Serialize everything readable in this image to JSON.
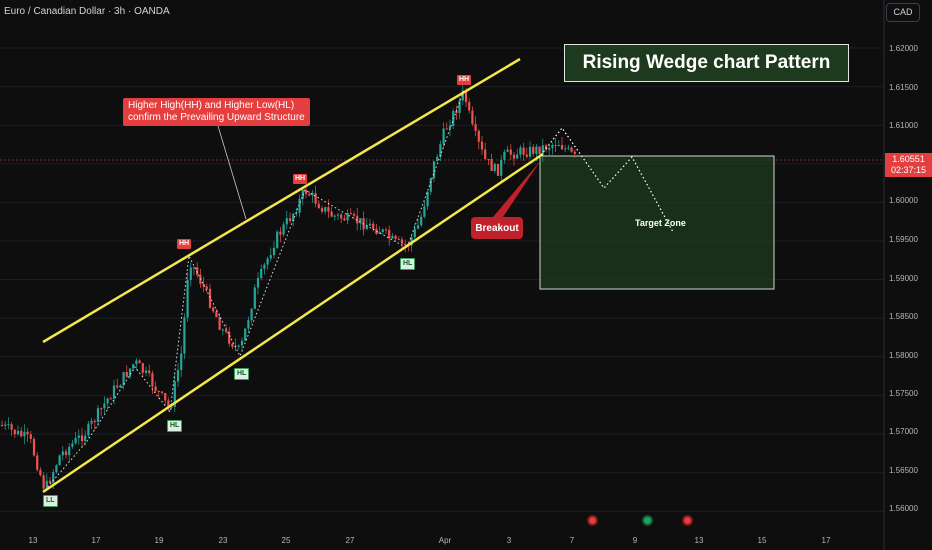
{
  "header": {
    "symbol": "Euro / Canadian Dollar · 3h · OANDA",
    "currency_button": "CAD"
  },
  "title_box": {
    "text": "Rising Wedge chart Pattern"
  },
  "callout": {
    "line1": "Higher High(HH) and Higher Low(HL)",
    "line2": "confirm the Prevailing Upward Structure"
  },
  "breakout_label": "Breakout",
  "target_label": "Target Zone",
  "current_price": {
    "price": "1.60551",
    "countdown": "02:37:15"
  },
  "price_axis": [
    "1.62000",
    "1.61500",
    "1.61000",
    "1.60500",
    "1.60000",
    "1.59500",
    "1.59000",
    "1.58500",
    "1.58000",
    "1.57500",
    "1.57000",
    "1.56500",
    "1.56000"
  ],
  "date_axis": [
    "13",
    "17",
    "19",
    "23",
    "25",
    "27",
    "Apr",
    "3",
    "7",
    "9",
    "13",
    "15",
    "17"
  ],
  "colors": {
    "bull": "#26a69a",
    "bear": "#ef5350",
    "wedge": "#f5e64c",
    "accent_red": "#e53e3e"
  },
  "event_icons": [
    "red-event-icon",
    "green-event-icon",
    "red-event-icon"
  ],
  "chart_data": {
    "type": "candlestick",
    "title": "Rising Wedge chart Pattern",
    "x_axis_ticks": [
      "13",
      "17",
      "19",
      "23",
      "25",
      "27",
      "Apr",
      "3",
      "7",
      "9",
      "13",
      "15",
      "17"
    ],
    "ylim": [
      1.5595,
      1.6215
    ],
    "current_price": 1.60551,
    "swing_points": [
      {
        "label": "LL",
        "x": "13",
        "price": 1.5632
      },
      {
        "label": "HL",
        "x": "19",
        "price": 1.5727
      },
      {
        "label": "HH",
        "x": "19",
        "price": 1.5922
      },
      {
        "label": "HL",
        "x": "23",
        "price": 1.5795
      },
      {
        "label": "HH",
        "x": "25",
        "price": 1.6013
      },
      {
        "label": "HL",
        "x": "27",
        "price": 1.5949
      },
      {
        "label": "HH",
        "x": "Apr",
        "price": 1.6137
      }
    ],
    "wedge_upper": [
      {
        "x": "13",
        "price": 1.5828
      },
      {
        "x": "3",
        "price": 1.6186
      }
    ],
    "wedge_lower": [
      {
        "x": "13",
        "price": 1.5627
      },
      {
        "x": "3",
        "price": 1.6049
      }
    ],
    "target_zone": {
      "from": "3",
      "to": "9",
      "price_high": 1.6055,
      "price_low": 1.5885
    },
    "projection": [
      1.6095,
      1.606,
      1.6015,
      1.6055,
      1.597
    ]
  }
}
